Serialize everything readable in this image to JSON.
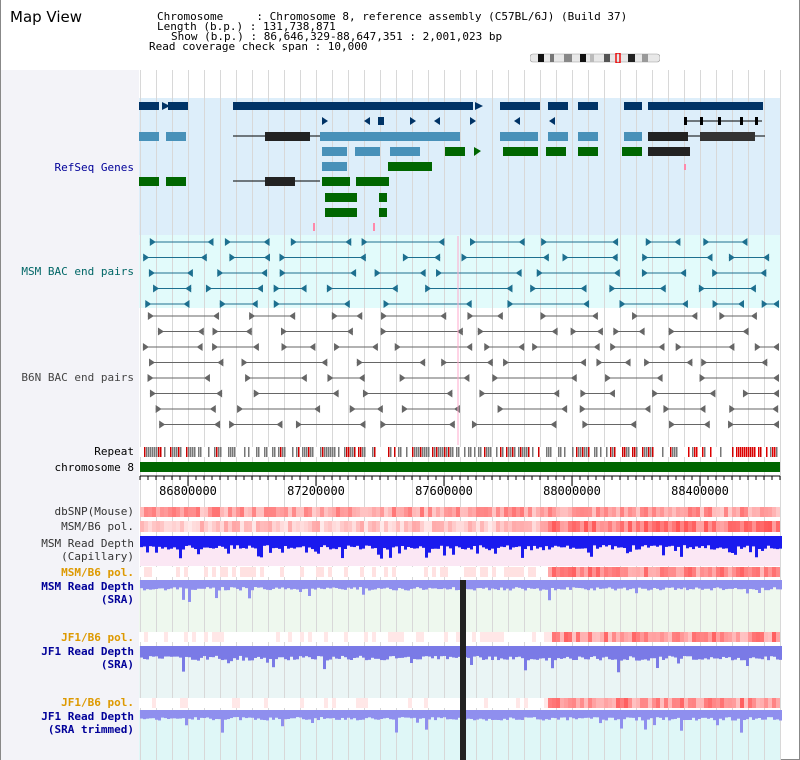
{
  "header": {
    "title": "Map View",
    "chromosome_line": "Chromosome     : Chromosome 8, reference assembly (C57BL/6J) (Build 37)",
    "length_line": "Length (b.p.) : 131,738,871",
    "show_line": "Show (b.p.) : 86,646,329-88,647,351 : 2,001,023 bp",
    "read_coverage_line": "Read coverage check span : 10,000"
  },
  "tracks": {
    "refseq_genes": "RefSeq Genes",
    "msm_bac": "MSM BAC end pairs",
    "b6n_bac": "B6N BAC end pairs",
    "repeat": "Repeat",
    "chromosome": "chromosome 8",
    "dbsnp": "dbSNP(Mouse)",
    "msm_b6_pol_1": "MSM/B6 pol.",
    "msm_read_depth_cap": "MSM Read Depth",
    "msm_read_depth_cap_sub": "(Capillary)",
    "msm_b6_pol_2": "MSM/B6 pol.",
    "msm_read_depth_sra": "MSM Read Depth",
    "msm_read_depth_sra_sub": "(SRA)",
    "jf1_b6_pol_1": "JF1/B6 pol.",
    "jf1_read_depth_sra": "JF1 Read Depth",
    "jf1_read_depth_sra_sub": "(SRA)",
    "jf1_b6_pol_2": "JF1/B6 pol.",
    "jf1_read_depth_trim": "JF1 Read Depth",
    "jf1_read_depth_trim_sub": "(SRA trimmed)"
  },
  "axis": {
    "ticks": [
      "86800000",
      "87200000",
      "87600000",
      "88000000",
      "88400000"
    ]
  },
  "colors": {
    "refseq_bg": "#ddeefa",
    "bac_bg": "#e2fbfb",
    "grey_bg": "#f0f0f0",
    "label_blue": "#000099",
    "label_teal": "#006666",
    "label_orange": "#dd9900",
    "gene_navy": "#003366",
    "gene_teal": "#4891b9",
    "gene_green": "#006600",
    "chromosome_green": "#006600"
  }
}
